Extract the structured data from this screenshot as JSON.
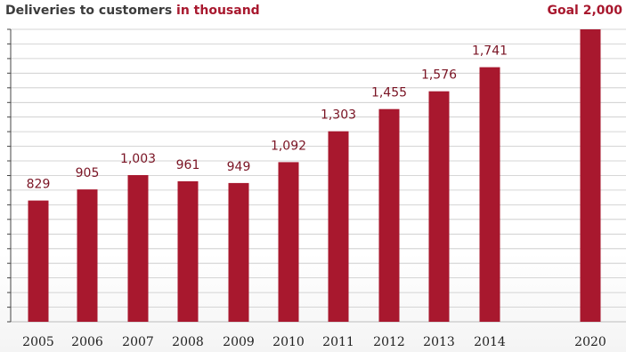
{
  "header": {
    "title_prefix": "Deliveries to customers",
    "title_highlight": "in thousand",
    "goal_label": "Goal 2,000"
  },
  "colors": {
    "bar": "#a8182e",
    "grid": "#c8c8c8",
    "title": "#3c3c3c",
    "accent": "#a8182e"
  },
  "chart_data": {
    "type": "bar",
    "title": "Deliveries to customers in thousand",
    "categories": [
      "2005",
      "2006",
      "2007",
      "2008",
      "2009",
      "2010",
      "2011",
      "2012",
      "2013",
      "2014",
      "2020"
    ],
    "values": [
      829,
      905,
      1003,
      961,
      949,
      1092,
      1303,
      1455,
      1576,
      1741,
      2000
    ],
    "value_labels": [
      "829",
      "905",
      "1,003",
      "961",
      "949",
      "1,092",
      "1,303",
      "1,455",
      "1,576",
      "1,741",
      ""
    ],
    "ylim": [
      0,
      2000
    ],
    "grid": true,
    "xlabel": "",
    "ylabel": ""
  }
}
